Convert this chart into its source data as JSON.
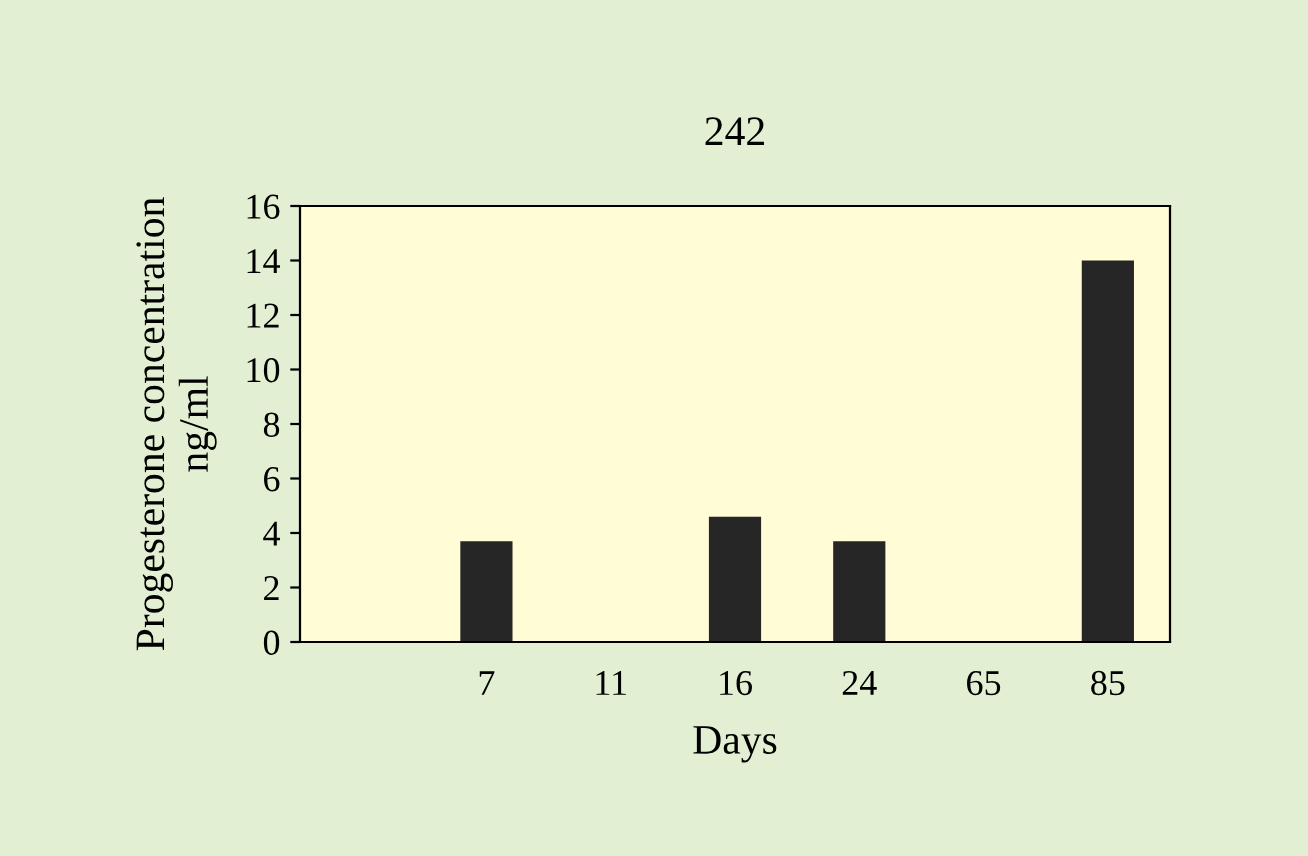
{
  "chart_data": {
    "type": "bar",
    "title": "242",
    "xlabel": "Days",
    "ylabel": "Progesterone concentration\nng/ml",
    "categories": [
      null,
      "7",
      "11",
      "16",
      "24",
      "65",
      "85"
    ],
    "values": [
      null,
      3.7,
      0,
      4.6,
      3.7,
      0,
      14
    ],
    "color": "#262626",
    "ylim": [
      0,
      16
    ],
    "yticks": [
      0,
      2,
      4,
      6,
      8,
      10,
      12,
      14,
      16
    ],
    "grid": false,
    "legend": false
  }
}
